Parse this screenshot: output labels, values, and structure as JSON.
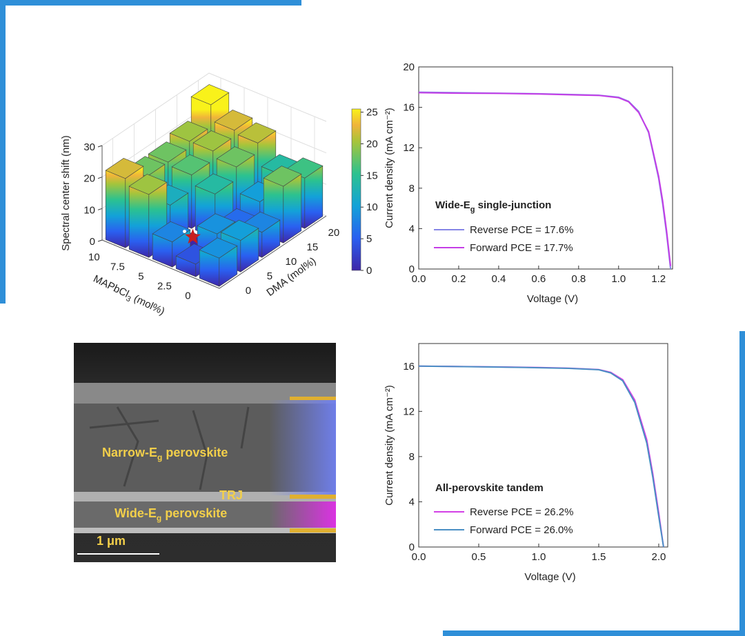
{
  "chart_data": [
    {
      "type": "bar3d",
      "zlabel": "Spectral center shift (nm)",
      "xlabel": [
        "MAPbCl",
        "3",
        " (mol%)"
      ],
      "ylabel": "DMA (mol%)",
      "xticks": [
        0,
        2.5,
        5,
        7.5,
        10
      ],
      "yticks": [
        0,
        5,
        10,
        15,
        20
      ],
      "zticks": [
        0,
        10,
        20,
        30
      ],
      "zlim": [
        0,
        30
      ],
      "values": [
        [
          9,
          10,
          8,
          18,
          16
        ],
        [
          4,
          9,
          6,
          10,
          14
        ],
        [
          8,
          0,
          14,
          18,
          21
        ],
        [
          20,
          12,
          17,
          20,
          22
        ],
        [
          22,
          18,
          18,
          20,
          27
        ]
      ],
      "colorbar": {
        "lim": [
          0,
          25.5
        ],
        "ticks": [
          0,
          5,
          10,
          15,
          20,
          25
        ]
      }
    },
    {
      "type": "line",
      "xlabel": "Voltage (V)",
      "ylabel": "Current density (mA cm⁻²)",
      "annotation": [
        "Wide-E",
        "g",
        " single-junction"
      ],
      "x": [
        0,
        0.2,
        0.4,
        0.6,
        0.8,
        0.9,
        1.0,
        1.05,
        1.1,
        1.15,
        1.2,
        1.22,
        1.24,
        1.26
      ],
      "series": [
        {
          "name": "Reverse PCE = 17.6%",
          "color": "#8585e6",
          "values": [
            17.5,
            17.45,
            17.4,
            17.35,
            17.25,
            17.2,
            17.0,
            16.6,
            15.6,
            13.5,
            9.0,
            6.5,
            3.5,
            0
          ]
        },
        {
          "name": "Forward PCE = 17.7%",
          "color": "#c43de6",
          "values": [
            17.45,
            17.4,
            17.38,
            17.32,
            17.22,
            17.18,
            16.95,
            16.55,
            15.5,
            13.6,
            9.2,
            6.8,
            3.8,
            0.3
          ]
        }
      ],
      "xlim": [
        0,
        1.27
      ],
      "ylim": [
        0,
        20
      ],
      "xticks": [
        {
          "value": 0,
          "label": "0.0"
        },
        0.2,
        0.4,
        0.6,
        0.8,
        {
          "value": 1,
          "label": "1.0"
        },
        1.2
      ],
      "yticks": [
        0,
        4,
        8,
        12,
        16,
        20
      ]
    },
    {
      "type": "line",
      "xlabel": "Voltage (V)",
      "ylabel": "Current density (mA cm⁻²)",
      "annotation": [
        "All-perovskite tandem"
      ],
      "x": [
        0,
        0.25,
        0.5,
        0.75,
        1.0,
        1.25,
        1.5,
        1.6,
        1.7,
        1.8,
        1.9,
        1.95,
        2.0,
        2.04
      ],
      "series": [
        {
          "name": "Reverse PCE = 26.2%",
          "color": "#d23fe6",
          "values": [
            16.0,
            15.98,
            15.95,
            15.92,
            15.88,
            15.82,
            15.7,
            15.45,
            14.8,
            13.0,
            9.5,
            6.5,
            3.0,
            0
          ]
        },
        {
          "name": "Forward PCE = 26.0%",
          "color": "#4a8fc4",
          "values": [
            16.0,
            15.97,
            15.94,
            15.9,
            15.86,
            15.8,
            15.68,
            15.4,
            14.7,
            12.8,
            9.2,
            6.2,
            2.7,
            0
          ]
        }
      ],
      "xlim": [
        0,
        2.075
      ],
      "ylim": [
        0,
        18
      ],
      "xticks": [
        {
          "value": 0,
          "label": "0.0"
        },
        0.5,
        {
          "value": 1,
          "label": "1.0"
        },
        1.5,
        {
          "value": 2,
          "label": "2.0"
        }
      ],
      "yticks": [
        0,
        4,
        8,
        12,
        16
      ]
    }
  ],
  "sem_image": {
    "narrow_label": [
      "Narrow-E",
      "g",
      " perovskite"
    ],
    "trj_label": "TRJ",
    "wide_label": [
      "Wide-E",
      "g",
      " perovskite"
    ],
    "scale_bar": "1 μm"
  }
}
